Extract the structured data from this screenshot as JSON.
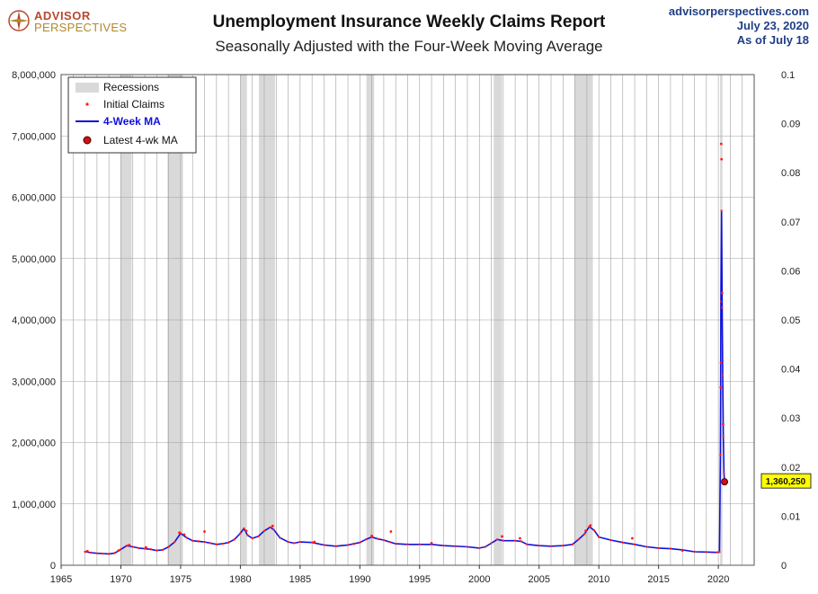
{
  "header": {
    "logo_line1": "ADVISOR",
    "logo_line2": "PERSPECTIVES",
    "title": "Unemployment Insurance Weekly Claims Report",
    "subtitle": "Seasonally Adjusted with the Four-Week Moving Average",
    "site": "advisorperspectives.com",
    "date": "July 23, 2020",
    "asof": "As of July 18"
  },
  "colors": {
    "claims": "#ff1a1a",
    "ma": "#1010e0",
    "recession": "#d9d9d9",
    "grid": "#a0a0a0",
    "callout_bg": "#ffff00",
    "brand": "#1f3f86"
  },
  "chart_data": {
    "type": "line",
    "x_range": [
      1965,
      2023
    ],
    "x_ticks": [
      "1965",
      "1970",
      "1975",
      "1980",
      "1985",
      "1990",
      "1995",
      "2000",
      "2005",
      "2010",
      "2015",
      "2020"
    ],
    "ylim": [
      0,
      8000000
    ],
    "y_ticks": [
      "0",
      "1,000,000",
      "2,000,000",
      "3,000,000",
      "4,000,000",
      "5,000,000",
      "6,000,000",
      "7,000,000",
      "8,000,000"
    ],
    "y2lim": [
      0,
      0.1
    ],
    "y2_ticks": [
      "0",
      "0.01",
      "0.02",
      "0.03",
      "0.04",
      "0.05",
      "0.06",
      "0.07",
      "0.08",
      "0.09",
      "0.1"
    ],
    "grid": true,
    "legend_position": "top-left",
    "legend": [
      "Recessions",
      "Initial Claims",
      "4-Week MA",
      "Latest 4-wk MA"
    ],
    "recessions": [
      [
        1969.95,
        1970.9
      ],
      [
        1973.9,
        1975.2
      ],
      [
        1980.0,
        1980.55
      ],
      [
        1981.55,
        1982.9
      ],
      [
        1990.55,
        1991.2
      ],
      [
        2001.2,
        2001.9
      ],
      [
        2007.95,
        2009.5
      ],
      [
        2020.15,
        2020.35
      ]
    ],
    "series": [
      {
        "name": "4-Week MA",
        "x": [
          1967.0,
          1967.5,
          1968.0,
          1968.5,
          1969.0,
          1969.5,
          1970.0,
          1970.5,
          1971.0,
          1971.5,
          1972.0,
          1972.5,
          1973.0,
          1973.5,
          1974.0,
          1974.5,
          1975.0,
          1975.5,
          1976.0,
          1976.5,
          1977.0,
          1977.5,
          1978.0,
          1978.5,
          1979.0,
          1979.5,
          1980.0,
          1980.3,
          1980.6,
          1981.0,
          1981.5,
          1982.0,
          1982.5,
          1982.8,
          1983.3,
          1984.0,
          1984.5,
          1985.0,
          1986.0,
          1987.0,
          1988.0,
          1989.0,
          1990.0,
          1990.5,
          1991.0,
          1991.5,
          1992.0,
          1992.5,
          1993.0,
          1994.0,
          1995.0,
          1996.0,
          1997.0,
          1998.0,
          1999.0,
          2000.0,
          2000.5,
          2001.0,
          2001.5,
          2002.0,
          2003.0,
          2003.5,
          2004.0,
          2005.0,
          2006.0,
          2007.0,
          2007.8,
          2008.3,
          2008.8,
          2009.2,
          2009.6,
          2010.0,
          2011.0,
          2012.0,
          2013.0,
          2014.0,
          2015.0,
          2016.0,
          2017.0,
          2018.0,
          2019.0,
          2019.9,
          2020.1,
          2020.17,
          2020.22,
          2020.27,
          2020.32,
          2020.37,
          2020.42,
          2020.47,
          2020.52
        ],
        "values": [
          220000,
          205000,
          195000,
          190000,
          185000,
          200000,
          260000,
          320000,
          300000,
          280000,
          270000,
          260000,
          240000,
          250000,
          300000,
          380000,
          520000,
          450000,
          400000,
          390000,
          380000,
          360000,
          340000,
          350000,
          370000,
          420000,
          520000,
          600000,
          490000,
          440000,
          470000,
          560000,
          620000,
          580000,
          450000,
          380000,
          360000,
          380000,
          370000,
          330000,
          310000,
          330000,
          370000,
          420000,
          460000,
          430000,
          410000,
          380000,
          350000,
          340000,
          340000,
          340000,
          320000,
          310000,
          300000,
          280000,
          300000,
          360000,
          420000,
          400000,
          400000,
          390000,
          340000,
          320000,
          310000,
          320000,
          340000,
          420000,
          510000,
          630000,
          570000,
          460000,
          410000,
          370000,
          340000,
          300000,
          280000,
          270000,
          250000,
          220000,
          215000,
          210000,
          215000,
          1800000,
          4300000,
          5780000,
          4200000,
          3100000,
          2100000,
          1500000,
          1360250
        ]
      },
      {
        "name": "Initial Claims",
        "x": [
          1967.2,
          1969.8,
          1970.7,
          1972.1,
          1974.9,
          1975.3,
          1977.0,
          1980.5,
          1982.7,
          1986.2,
          1989.5,
          1991.0,
          1992.6,
          1996.0,
          2001.9,
          2003.4,
          2008.9,
          2009.3,
          2012.8,
          2017.0,
          2020.2,
          2020.22,
          2020.24,
          2020.27,
          2020.32,
          2020.4
        ],
        "values": [
          230000,
          240000,
          330000,
          290000,
          530000,
          500000,
          550000,
          560000,
          640000,
          380000,
          350000,
          480000,
          550000,
          360000,
          470000,
          440000,
          560000,
          650000,
          440000,
          240000,
          2900000,
          3300000,
          6870000,
          6620000,
          4440000,
          2300000
        ]
      }
    ],
    "latest": {
      "x": 2020.52,
      "value": 1360250,
      "label": "1,360,250"
    }
  }
}
